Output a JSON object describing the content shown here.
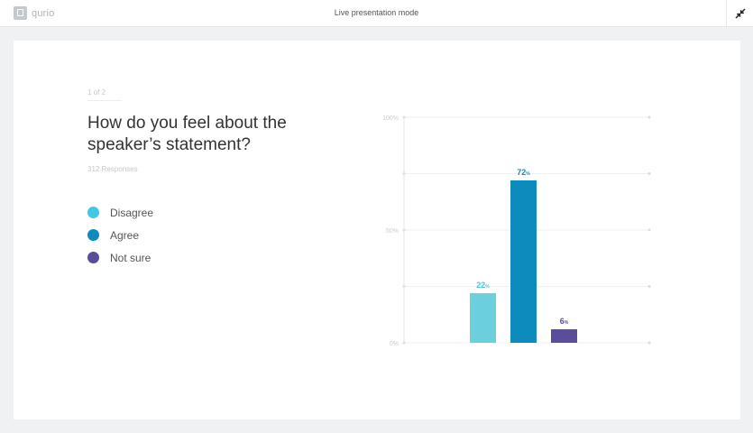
{
  "app": {
    "name": "qurio",
    "title": "Live presentation mode"
  },
  "icons": {
    "logo": "qurio-logo-icon",
    "exit": "exit-fullscreen-icon"
  },
  "question": {
    "counter": "1 of 2",
    "text": "How do you feel about the speaker’s statement?",
    "responses": "312 Responses"
  },
  "legend": [
    {
      "label": "Disagree",
      "color": "#42c8e0"
    },
    {
      "label": "Agree",
      "color": "#0e8bbd"
    },
    {
      "label": "Not sure",
      "color": "#5b4d9a"
    }
  ],
  "chart_data": {
    "type": "bar",
    "categories": [
      "Disagree",
      "Agree",
      "Not sure"
    ],
    "values": [
      22,
      72,
      6
    ],
    "value_unit": "%",
    "colors": [
      "#6bd0db",
      "#0e8bbd",
      "#5b4d9a"
    ],
    "label_colors": [
      "#42c8e0",
      "#0e8bbd",
      "#5b4d9a"
    ],
    "yticks": [
      {
        "value": 100,
        "label": "100%"
      },
      {
        "value": 75,
        "label": ""
      },
      {
        "value": 50,
        "label": "50%"
      },
      {
        "value": 25,
        "label": ""
      },
      {
        "value": 0,
        "label": "0%"
      }
    ],
    "ylim": [
      0,
      100
    ],
    "grid": true,
    "legend_position": "left"
  }
}
